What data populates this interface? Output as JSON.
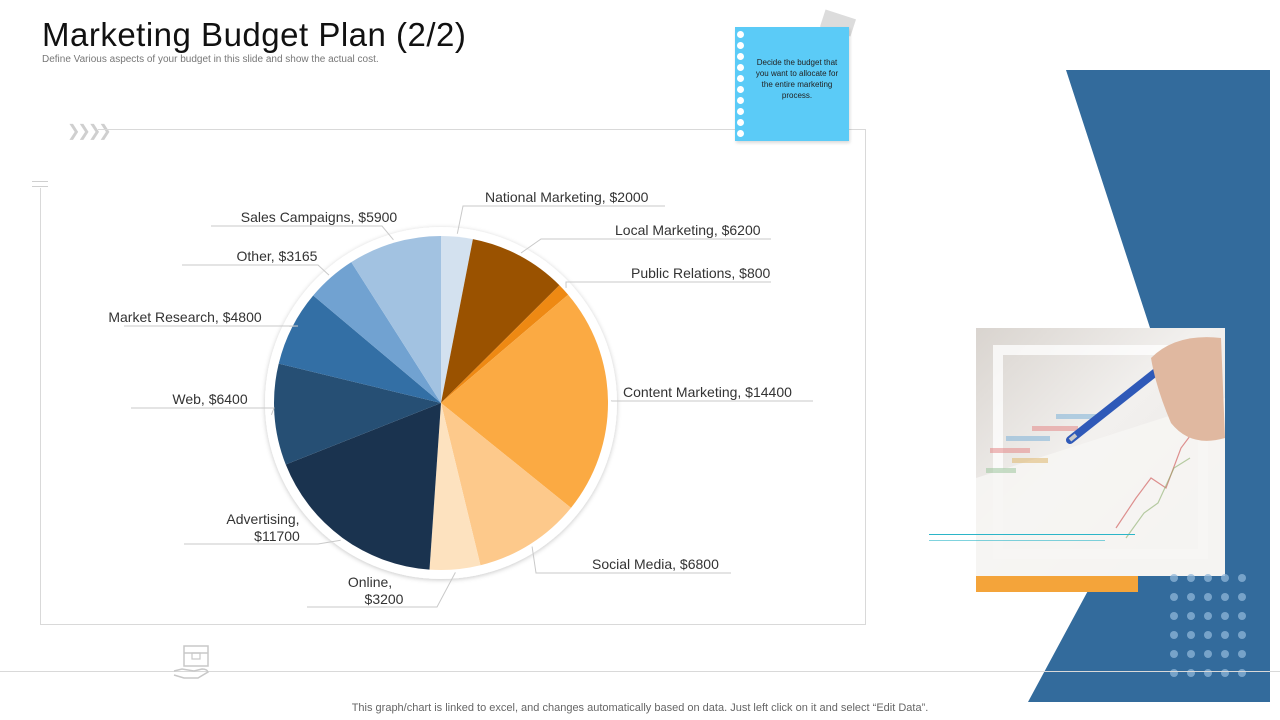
{
  "header": {
    "title": "Marketing Budget Plan (2/2)",
    "subtitle": "Define Various aspects of your budget in this slide and show the actual cost."
  },
  "note": {
    "text": "Decide the budget that you want to allocate for the entire marketing process."
  },
  "footer": {
    "text": "This graph/chart is linked to excel,  and changes automatically based on data. Just left click on it and select “Edit Data”."
  },
  "chart_data": {
    "type": "pie",
    "title": "",
    "slices": [
      {
        "label": "National Marketing",
        "value": 2000,
        "display": "National Marketing, $2000",
        "color": "#d3e1ef"
      },
      {
        "label": "Local Marketing",
        "value": 6200,
        "display": "Local Marketing,  $6200",
        "color": "#9a5200"
      },
      {
        "label": "Public Relations",
        "value": 800,
        "display": "Public Relations, $800",
        "color": "#ee8913"
      },
      {
        "label": "Content Marketing",
        "value": 14400,
        "display": "Content Marketing,  $14400",
        "color": "#fbaa43"
      },
      {
        "label": "Social Media",
        "value": 6800,
        "display": "Social Media,  $6800",
        "color": "#fdc98b"
      },
      {
        "label": "Online",
        "value": 3200,
        "display": "Online,\n$3200",
        "color": "#fde2bf"
      },
      {
        "label": "Advertising",
        "value": 11700,
        "display": "Advertising,\n$11700",
        "color": "#1a334f"
      },
      {
        "label": "Web",
        "value": 6400,
        "display": "Web, $6400",
        "color": "#264f74"
      },
      {
        "label": "Market Research",
        "value": 4800,
        "display": "Market Research, $4800",
        "color": "#336fa5"
      },
      {
        "label": "Other",
        "value": 3165,
        "display": "Other, $3165",
        "color": "#71a2d1"
      },
      {
        "label": "Sales Campaigns",
        "value": 5900,
        "display": "Sales Campaigns, $5900",
        "color": "#a2c2e1"
      }
    ]
  },
  "colors": {
    "accent_blue": "#336b9c",
    "accent_orange": "#f4a43a",
    "note_blue": "#5bcbf7"
  }
}
